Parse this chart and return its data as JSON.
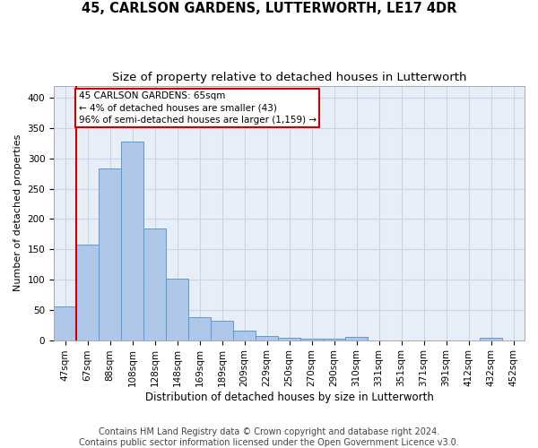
{
  "title": "45, CARLSON GARDENS, LUTTERWORTH, LE17 4DR",
  "subtitle": "Size of property relative to detached houses in Lutterworth",
  "xlabel": "Distribution of detached houses by size in Lutterworth",
  "ylabel": "Number of detached properties",
  "categories": [
    "47sqm",
    "67sqm",
    "88sqm",
    "108sqm",
    "128sqm",
    "148sqm",
    "169sqm",
    "189sqm",
    "209sqm",
    "229sqm",
    "250sqm",
    "270sqm",
    "290sqm",
    "310sqm",
    "331sqm",
    "351sqm",
    "371sqm",
    "391sqm",
    "412sqm",
    "432sqm",
    "452sqm"
  ],
  "values": [
    55,
    158,
    283,
    328,
    184,
    101,
    38,
    32,
    15,
    7,
    4,
    2,
    2,
    5,
    0,
    0,
    0,
    0,
    0,
    4,
    0
  ],
  "bar_color": "#aec6e8",
  "bar_edge_color": "#5b9bd5",
  "subject_line_color": "#cc0000",
  "annotation_text": "45 CARLSON GARDENS: 65sqm\n← 4% of detached houses are smaller (43)\n96% of semi-detached houses are larger (1,159) →",
  "annotation_box_color": "#cc0000",
  "ylim": [
    0,
    420
  ],
  "yticks": [
    0,
    50,
    100,
    150,
    200,
    250,
    300,
    350,
    400
  ],
  "grid_color": "#c8d4e8",
  "background_color": "#e8eef8",
  "footer_line1": "Contains HM Land Registry data © Crown copyright and database right 2024.",
  "footer_line2": "Contains public sector information licensed under the Open Government Licence v3.0.",
  "title_fontsize": 10.5,
  "subtitle_fontsize": 9.5,
  "xlabel_fontsize": 8.5,
  "ylabel_fontsize": 8,
  "tick_fontsize": 7.5,
  "footer_fontsize": 7
}
